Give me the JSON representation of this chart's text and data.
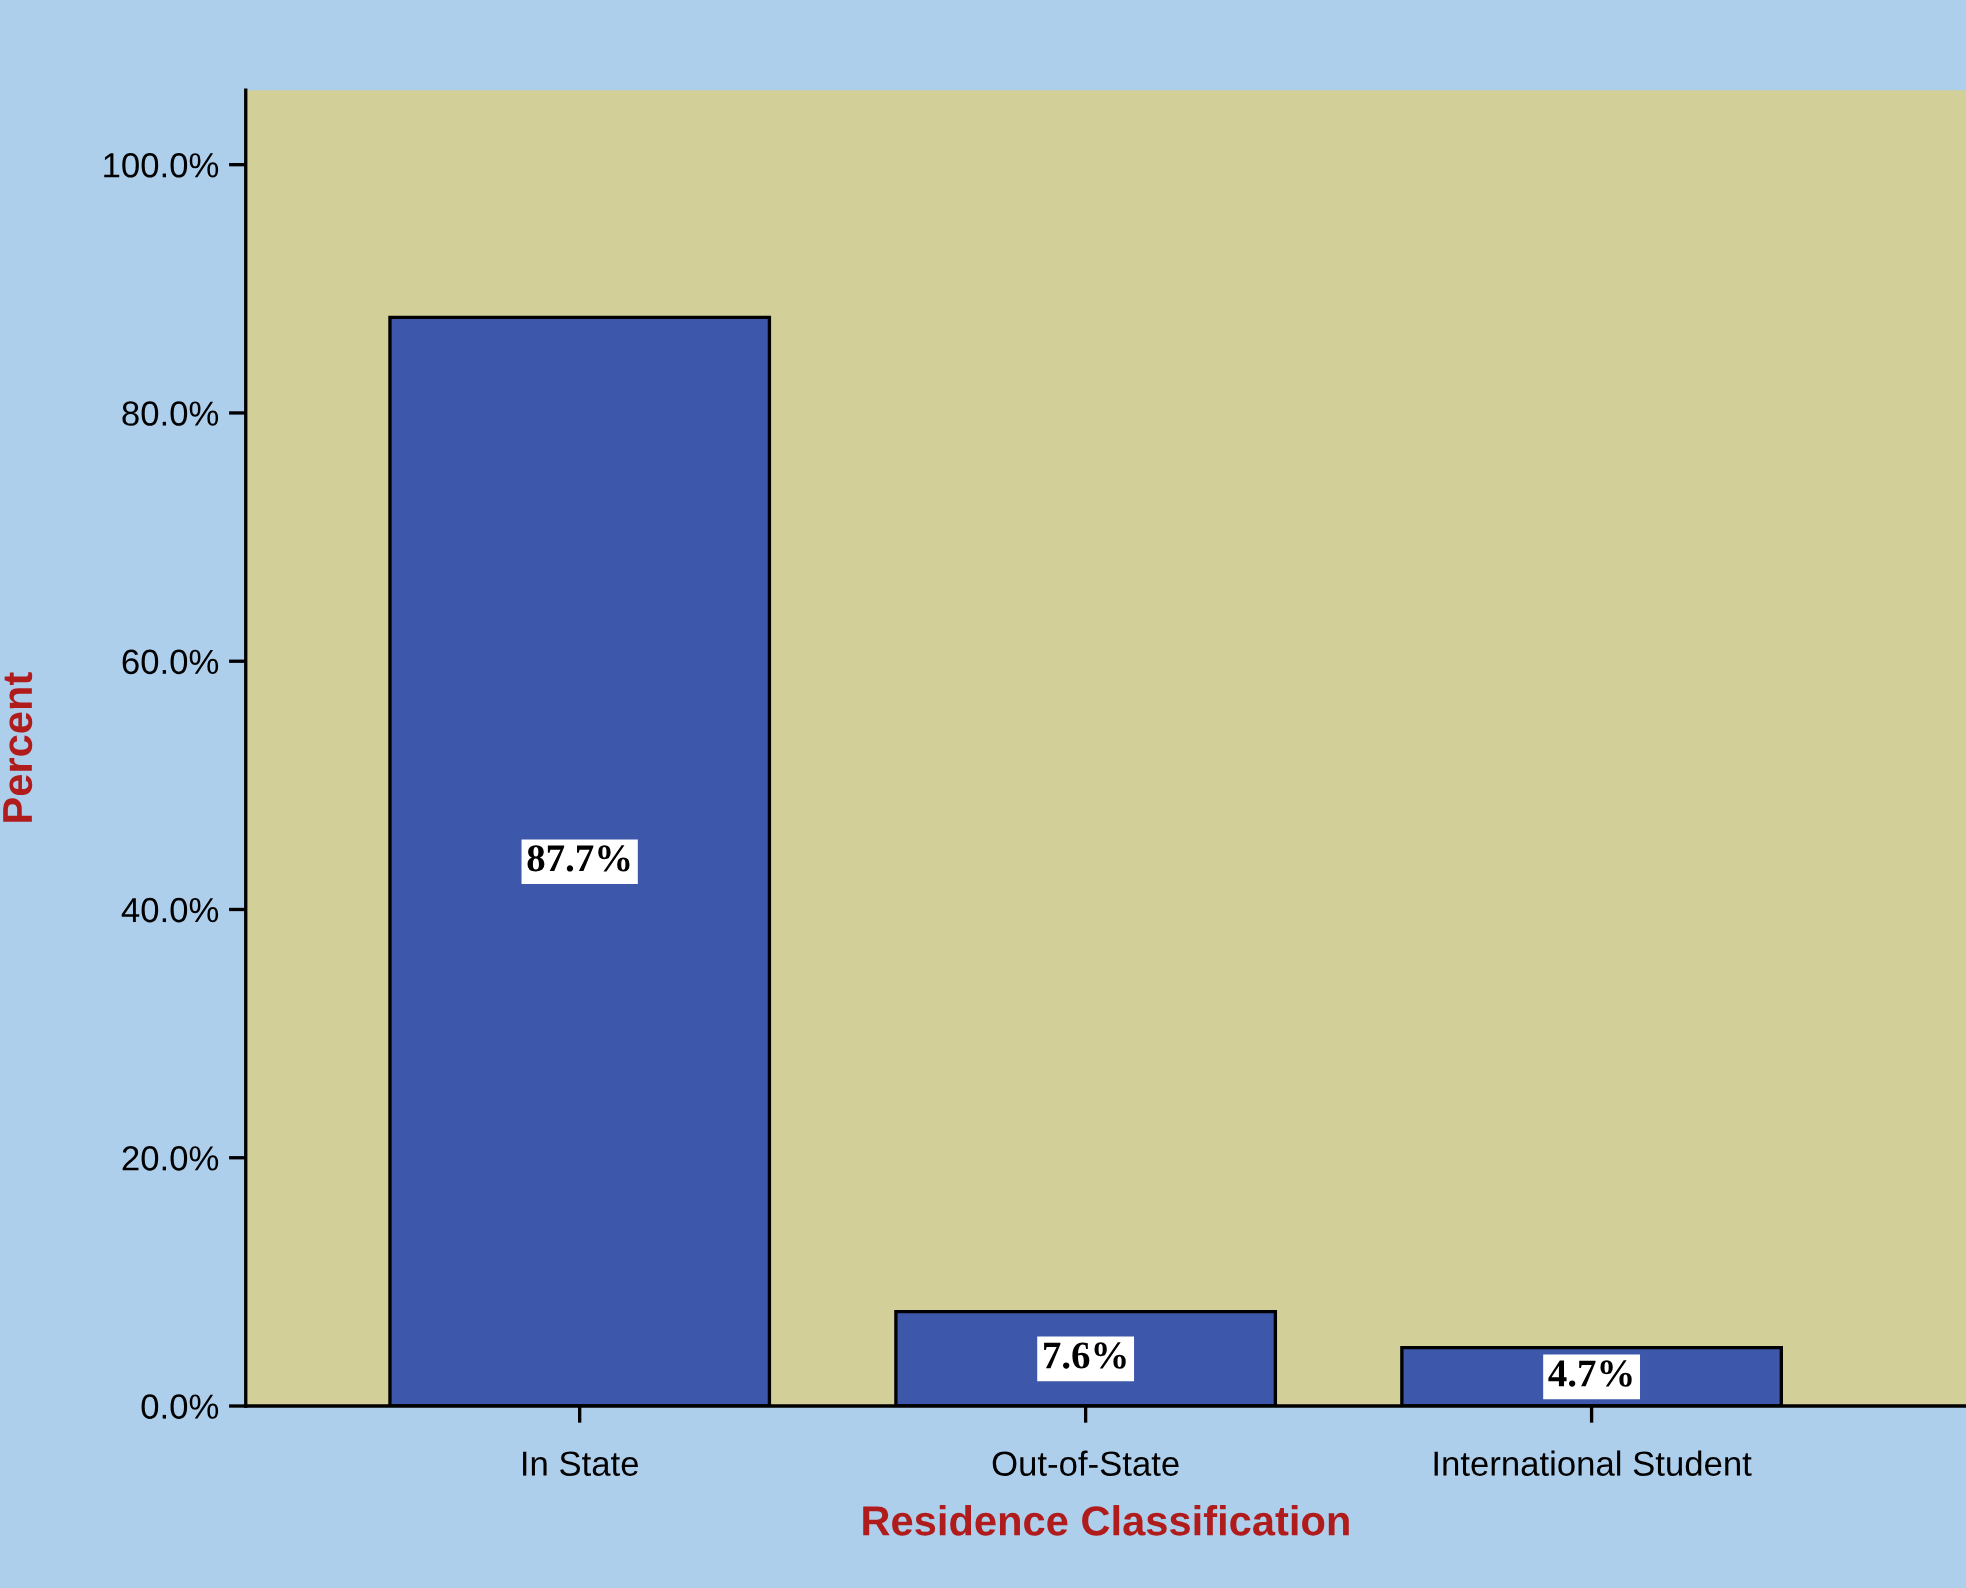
{
  "chart_data": {
    "type": "bar",
    "xlabel": "Residence Classification",
    "ylabel": "Percent",
    "categories": [
      "In State",
      "Out-of-State",
      "International Student"
    ],
    "values": [
      87.7,
      7.6,
      4.7
    ],
    "color": "#3d58ab",
    "value_labels": [
      "87.7%",
      "7.6%",
      "4.7%"
    ],
    "ylim": [
      0,
      106
    ],
    "yticks": [
      {
        "value": 0,
        "label": "0.0%"
      },
      {
        "value": 20,
        "label": "20.0%"
      },
      {
        "value": 40,
        "label": "40.0%"
      },
      {
        "value": 60,
        "label": "60.0%"
      },
      {
        "value": 80,
        "label": "80.0%"
      },
      {
        "value": 100,
        "label": "100.0%"
      }
    ]
  }
}
